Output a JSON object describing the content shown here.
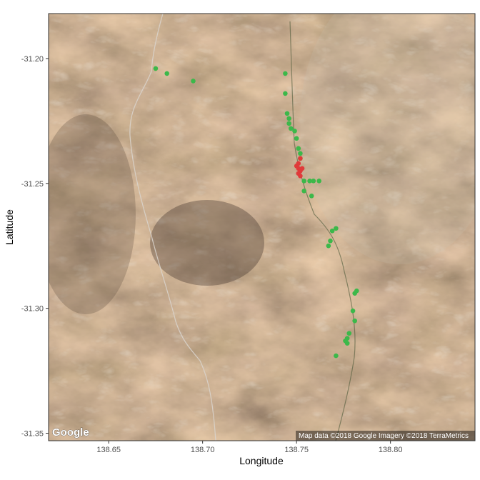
{
  "chart_data": {
    "type": "scatter",
    "title": "",
    "xlabel": "Longitude",
    "ylabel": "Latitude",
    "xlim": [
      138.618,
      138.845
    ],
    "ylim": [
      -31.353,
      -31.182
    ],
    "x_ticks": [
      138.65,
      138.7,
      138.75,
      138.8
    ],
    "x_tick_labels": [
      "138.65",
      "138.70",
      "138.75",
      "138.80"
    ],
    "y_ticks": [
      -31.2,
      -31.25,
      -31.3,
      -31.35
    ],
    "y_tick_labels": [
      "-31.20",
      "-31.25",
      "-31.30",
      "-31.35"
    ],
    "grid": false,
    "legend": "none",
    "background": "satellite imagery",
    "basemap_logo": "Google",
    "attribution": "Map data ©2018 Google  Imagery ©2018 TerraMetrics",
    "colors": {
      "green": "#3cb84a",
      "red": "#e03a3a"
    },
    "series": [
      {
        "color": "#3cb84a",
        "points": [
          [
            138.675,
            -31.204
          ],
          [
            138.681,
            -31.206
          ],
          [
            138.695,
            -31.209
          ],
          [
            138.744,
            -31.206
          ],
          [
            138.744,
            -31.214
          ],
          [
            138.745,
            -31.222
          ],
          [
            138.746,
            -31.224
          ],
          [
            138.746,
            -31.226
          ],
          [
            138.747,
            -31.228
          ],
          [
            138.749,
            -31.229
          ],
          [
            138.75,
            -31.232
          ],
          [
            138.751,
            -31.236
          ],
          [
            138.752,
            -31.238
          ],
          [
            138.752,
            -31.24
          ],
          [
            138.754,
            -31.249
          ],
          [
            138.757,
            -31.249
          ],
          [
            138.759,
            -31.249
          ],
          [
            138.754,
            -31.253
          ],
          [
            138.758,
            -31.255
          ],
          [
            138.762,
            -31.249
          ],
          [
            138.771,
            -31.268
          ],
          [
            138.769,
            -31.269
          ],
          [
            138.768,
            -31.273
          ],
          [
            138.767,
            -31.275
          ],
          [
            138.782,
            -31.293
          ],
          [
            138.781,
            -31.294
          ],
          [
            138.78,
            -31.301
          ],
          [
            138.781,
            -31.305
          ],
          [
            138.778,
            -31.31
          ],
          [
            138.777,
            -31.312
          ],
          [
            138.776,
            -31.313
          ],
          [
            138.777,
            -31.314
          ],
          [
            138.771,
            -31.319
          ]
        ]
      },
      {
        "color": "#e03a3a",
        "points": [
          [
            138.752,
            -31.24
          ],
          [
            138.751,
            -31.242
          ],
          [
            138.75,
            -31.243
          ],
          [
            138.751,
            -31.244
          ],
          [
            138.752,
            -31.245
          ],
          [
            138.751,
            -31.246
          ],
          [
            138.752,
            -31.247
          ],
          [
            138.753,
            -31.244
          ]
        ]
      }
    ]
  }
}
